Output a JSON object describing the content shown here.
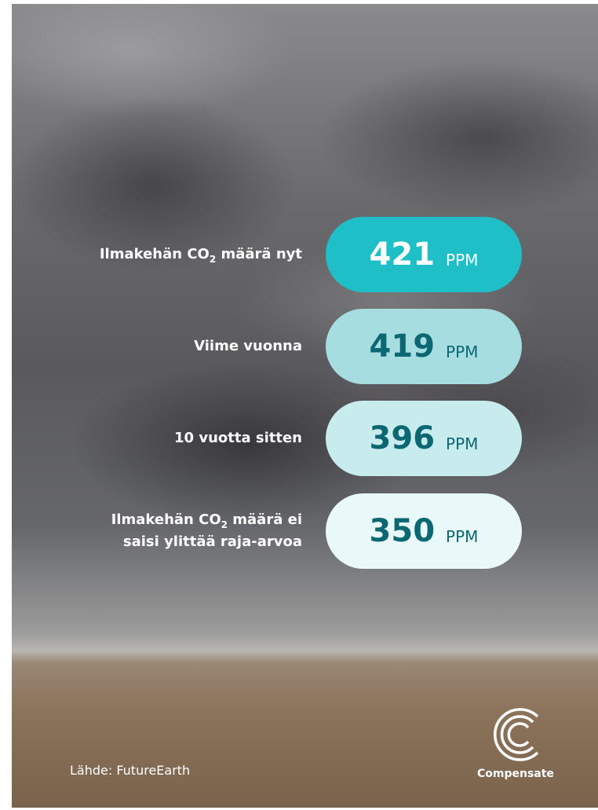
{
  "rows": [
    {
      "label": [
        [
          {
            "text": "Ilmakehän CO"
          },
          {
            "sub": "2"
          },
          {
            "text": " määrä nyt"
          }
        ]
      ],
      "value": "421",
      "unit": "PPM",
      "fill": "#1fbfc8",
      "ink": "#ffffff"
    },
    {
      "label": [
        [
          {
            "text": "Viime vuonna"
          }
        ]
      ],
      "value": "419",
      "unit": "PPM",
      "fill": "#a6dde1",
      "ink": "#0b6873"
    },
    {
      "label": [
        [
          {
            "text": "10 vuotta sitten"
          }
        ]
      ],
      "value": "396",
      "unit": "PPM",
      "fill": "#c8ebee",
      "ink": "#0b6873"
    },
    {
      "label": [
        [
          {
            "text": "Ilmakehän CO"
          },
          {
            "sub": "2"
          },
          {
            "text": " määrä ei"
          }
        ],
        [
          {
            "text": "saisi ylittää raja-arvoa"
          }
        ]
      ],
      "value": "350",
      "unit": "PPM",
      "fill": "#e9f8f9",
      "ink": "#0b6873"
    }
  ],
  "source": "Lähde: FutureEarth",
  "brand": "Compensate"
}
